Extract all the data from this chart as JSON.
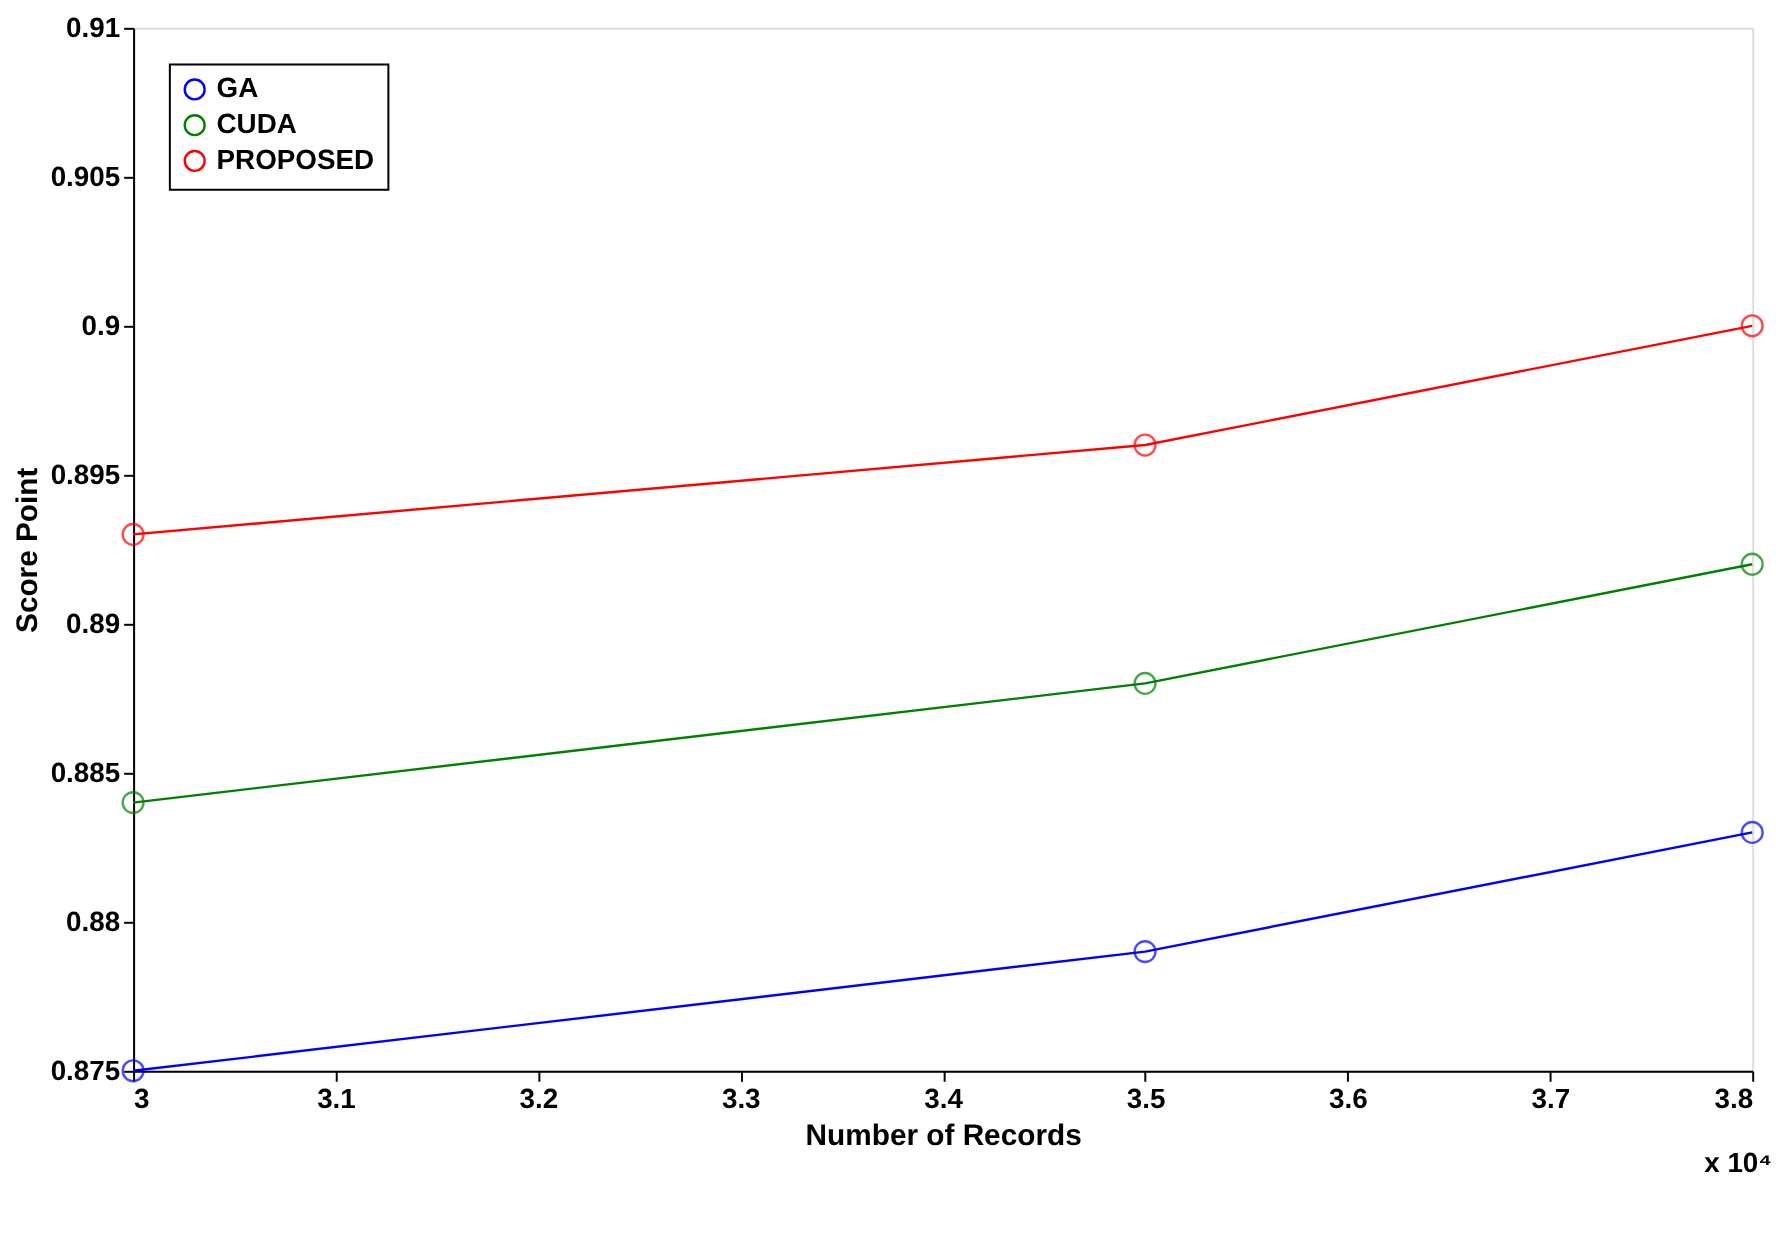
{
  "chart_data": {
    "type": "line",
    "xlabel": "Number of Records",
    "ylabel": "Score Point",
    "x": [
      3,
      3.5,
      3.8
    ],
    "series": [
      {
        "name": "GA",
        "color": "#0000ff",
        "values": [
          0.875,
          0.879,
          0.883
        ]
      },
      {
        "name": "CUDA",
        "color": "#008000",
        "values": [
          0.884,
          0.888,
          0.892
        ]
      },
      {
        "name": "PROPOSED",
        "color": "#ff0000",
        "values": [
          0.893,
          0.896,
          0.9
        ]
      }
    ],
    "xlim": [
      3,
      3.8
    ],
    "xticks": [
      3,
      3.1,
      3.2,
      3.3,
      3.4,
      3.5,
      3.6,
      3.7,
      3.8
    ],
    "ylim": [
      0.875,
      0.91
    ],
    "yticks": [
      0.875,
      0.88,
      0.885,
      0.89,
      0.895,
      0.9,
      0.905,
      0.91
    ],
    "annotations": [
      "x 10⁴"
    ],
    "grid": false,
    "legend": "top left",
    "marker": "circle",
    "line_style": "solid"
  }
}
